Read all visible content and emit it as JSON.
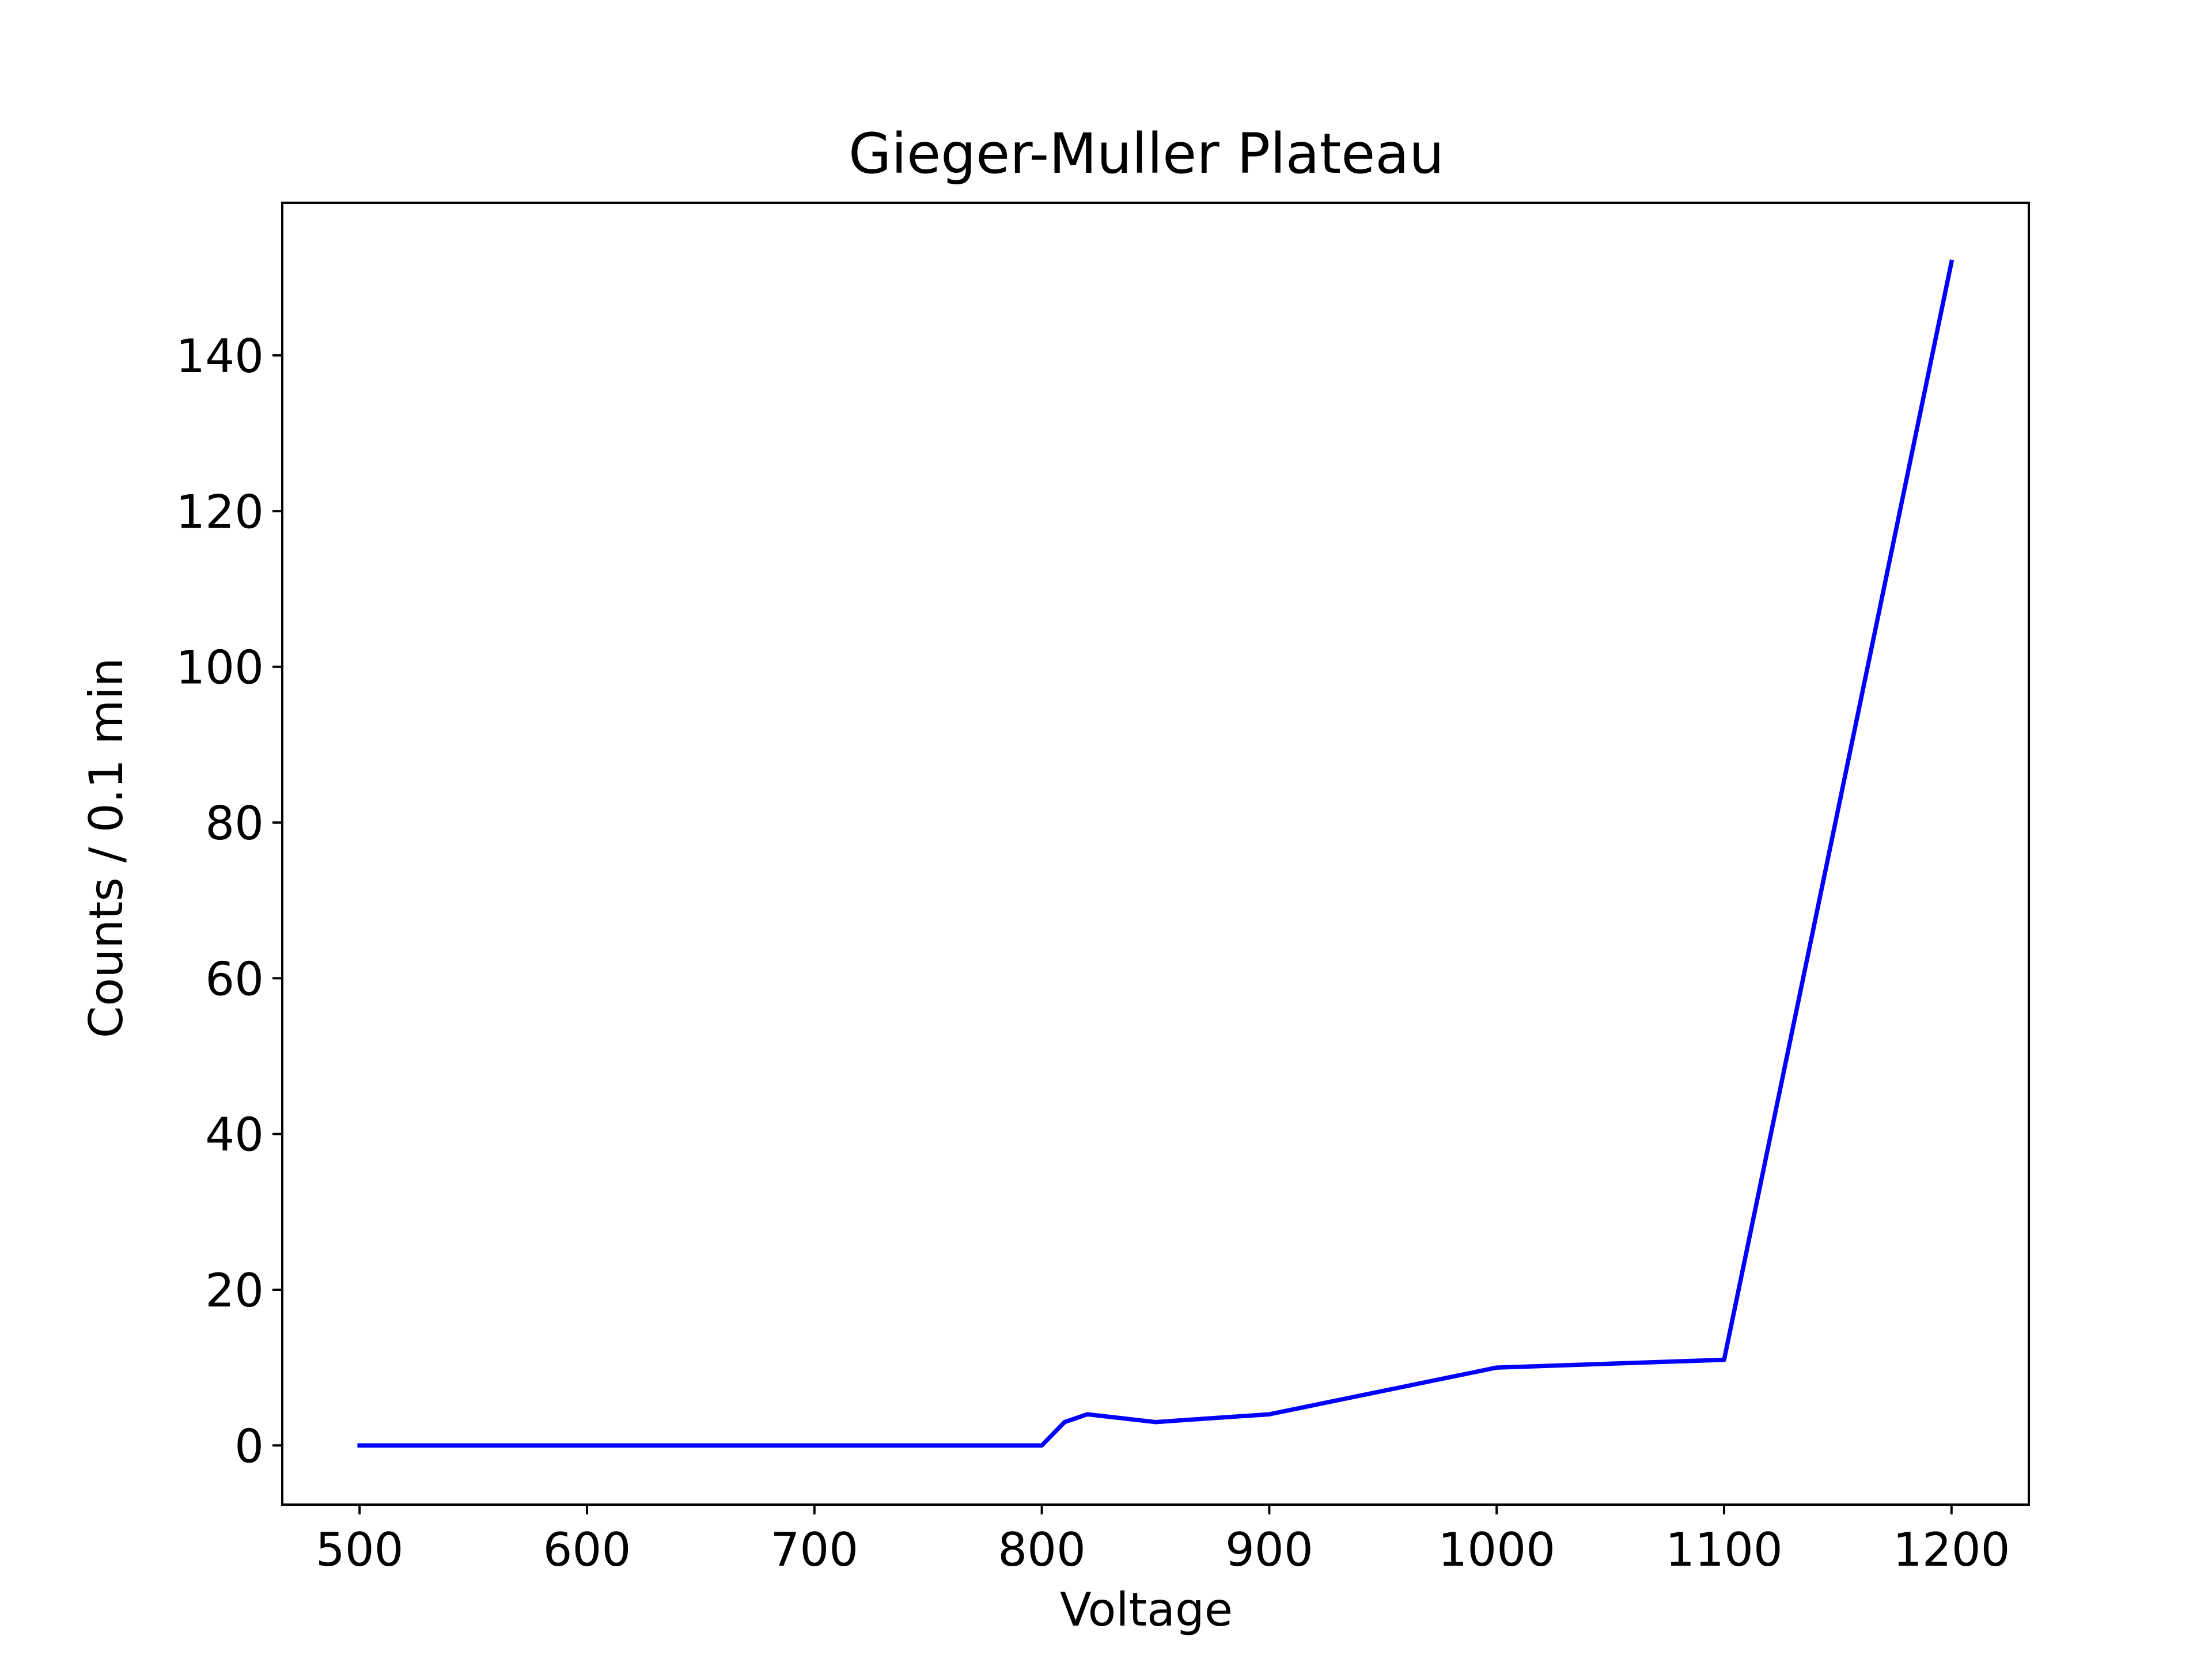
{
  "chart_data": {
    "type": "line",
    "title": "Gieger-Muller Plateau",
    "xlabel": "Voltage",
    "ylabel": "Counts / 0.1 min",
    "xlim": [
      466,
      1234
    ],
    "ylim": [
      -7.6,
      159.6
    ],
    "x_ticks": [
      500,
      600,
      700,
      800,
      900,
      1000,
      1100,
      1200
    ],
    "y_ticks": [
      0,
      20,
      40,
      60,
      80,
      100,
      120,
      140
    ],
    "grid": false,
    "legend": "none",
    "series": [
      {
        "color": "#0000ff",
        "x": [
          500,
          800,
          810,
          820,
          850,
          900,
          1000,
          1100,
          1200
        ],
        "y": [
          0,
          0,
          3,
          4,
          3,
          4,
          10,
          11,
          152
        ]
      }
    ]
  }
}
